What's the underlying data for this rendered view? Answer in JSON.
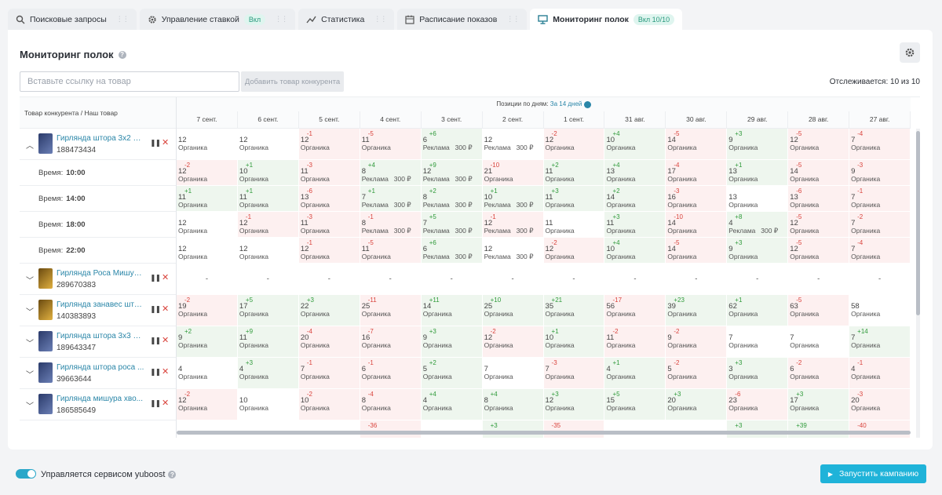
{
  "tabs": [
    {
      "label": "Поисковые запросы",
      "icon": "search-icon",
      "active": false
    },
    {
      "label": "Управление ставкой",
      "icon": "gear-icon",
      "badge": "Вкл",
      "active": false
    },
    {
      "label": "Статистика",
      "icon": "chart-line-icon",
      "active": false
    },
    {
      "label": "Расписание показов",
      "icon": "calendar-icon",
      "active": false
    },
    {
      "label": "Мониторинг полок",
      "icon": "monitor-icon",
      "badge": "Вкл 10/10",
      "active": true
    }
  ],
  "page": {
    "title": "Мониторинг полок",
    "search_placeholder": "Вставьте ссылку на товар",
    "add_button": "Добавить товар конкурента",
    "tracked": "Отслеживается: 10 из 10"
  },
  "table": {
    "left_header": "Товар конкурента / Наш товар",
    "positions_label": "Позиции по дням:",
    "positions_link": "За 14 дней",
    "dates": [
      "7 сент.",
      "6 сент.",
      "5 сент.",
      "4 сент.",
      "3 сент.",
      "2 сент.",
      "1 сент.",
      "31 авг.",
      "30 авг.",
      "29 авг.",
      "28 авг.",
      "27 авг."
    ],
    "rows": [
      {
        "type": "product",
        "name": "Гирлянда штора 3х2 U...",
        "id": "188473434",
        "thumb": "blue",
        "expanded": true,
        "cells": [
          [
            "12",
            "",
            "Органика",
            ""
          ],
          [
            "12",
            "",
            "Органика",
            ""
          ],
          [
            "12",
            "-1",
            "Органика",
            ""
          ],
          [
            "11",
            "-5",
            "Органика",
            ""
          ],
          [
            "6",
            "+6",
            "Реклама",
            "300 ₽"
          ],
          [
            "12",
            "",
            "Реклама",
            "300 ₽"
          ],
          [
            "12",
            "-2",
            "Органика",
            ""
          ],
          [
            "10",
            "+4",
            "Органика",
            ""
          ],
          [
            "14",
            "-5",
            "Органика",
            ""
          ],
          [
            "9",
            "+3",
            "Органика",
            ""
          ],
          [
            "12",
            "-5",
            "Органика",
            ""
          ],
          [
            "7",
            "-4",
            "Органика",
            ""
          ]
        ]
      },
      {
        "type": "time",
        "label": "Время:",
        "time": "10:00",
        "cells": [
          [
            "12",
            "-2",
            "Органика",
            ""
          ],
          [
            "10",
            "+1",
            "Органика",
            ""
          ],
          [
            "11",
            "-3",
            "Органика",
            ""
          ],
          [
            "8",
            "+4",
            "Реклама",
            "300 ₽"
          ],
          [
            "12",
            "+9",
            "Реклама",
            "300 ₽"
          ],
          [
            "21",
            "-10",
            "Органика",
            ""
          ],
          [
            "11",
            "+2",
            "Органика",
            ""
          ],
          [
            "13",
            "+4",
            "Органика",
            ""
          ],
          [
            "17",
            "-4",
            "Органика",
            ""
          ],
          [
            "13",
            "+1",
            "Органика",
            ""
          ],
          [
            "14",
            "-5",
            "Органика",
            ""
          ],
          [
            "9",
            "-3",
            "Органика",
            ""
          ]
        ]
      },
      {
        "type": "time",
        "label": "Время:",
        "time": "14:00",
        "cells": [
          [
            "11",
            "+1",
            "Органика",
            ""
          ],
          [
            "11",
            "+1",
            "Органика",
            ""
          ],
          [
            "13",
            "-6",
            "Органика",
            ""
          ],
          [
            "7",
            "+1",
            "Реклама",
            "300 ₽"
          ],
          [
            "8",
            "+2",
            "Реклама",
            "300 ₽"
          ],
          [
            "10",
            "+1",
            "Реклама",
            "300 ₽"
          ],
          [
            "11",
            "+3",
            "Органика",
            ""
          ],
          [
            "14",
            "+2",
            "Органика",
            ""
          ],
          [
            "16",
            "-3",
            "Органика",
            ""
          ],
          [
            "13",
            "",
            "Органика",
            ""
          ],
          [
            "13",
            "-6",
            "Органика",
            ""
          ],
          [
            "7",
            "-1",
            "Органика",
            ""
          ]
        ]
      },
      {
        "type": "time",
        "label": "Время:",
        "time": "18:00",
        "cells": [
          [
            "12",
            "",
            "Органика",
            ""
          ],
          [
            "12",
            "-1",
            "Органика",
            ""
          ],
          [
            "11",
            "-3",
            "Органика",
            ""
          ],
          [
            "8",
            "-1",
            "Реклама",
            "300 ₽"
          ],
          [
            "7",
            "+5",
            "Реклама",
            "300 ₽"
          ],
          [
            "12",
            "-1",
            "Реклама",
            "300 ₽"
          ],
          [
            "11",
            "",
            "Органика",
            ""
          ],
          [
            "11",
            "+3",
            "Органика",
            ""
          ],
          [
            "14",
            "-10",
            "Органика",
            ""
          ],
          [
            "4",
            "+8",
            "Реклама",
            "300 ₽"
          ],
          [
            "12",
            "-5",
            "Органика",
            ""
          ],
          [
            "7",
            "-2",
            "Органика",
            ""
          ]
        ]
      },
      {
        "type": "time",
        "label": "Время:",
        "time": "22:00",
        "cells": [
          [
            "12",
            "",
            "Органика",
            ""
          ],
          [
            "12",
            "",
            "Органика",
            ""
          ],
          [
            "12",
            "-1",
            "Органика",
            ""
          ],
          [
            "11",
            "-5",
            "Органика",
            ""
          ],
          [
            "6",
            "+6",
            "Реклама",
            "300 ₽"
          ],
          [
            "12",
            "",
            "Реклама",
            "300 ₽"
          ],
          [
            "12",
            "-2",
            "Органика",
            ""
          ],
          [
            "10",
            "+4",
            "Органика",
            ""
          ],
          [
            "14",
            "-5",
            "Органика",
            ""
          ],
          [
            "9",
            "+3",
            "Органика",
            ""
          ],
          [
            "12",
            "-5",
            "Органика",
            ""
          ],
          [
            "7",
            "-4",
            "Органика",
            ""
          ]
        ]
      },
      {
        "type": "product",
        "name": "Гирлянда Роса Мишур...",
        "id": "289670383",
        "thumb": "gold",
        "expanded": false,
        "empty": "-"
      },
      {
        "type": "product",
        "name": "Гирлянда занавес што...",
        "id": "140383893",
        "thumb": "gold",
        "expanded": false,
        "cells": [
          [
            "19",
            "-2",
            "Органика",
            ""
          ],
          [
            "17",
            "+5",
            "Органика",
            ""
          ],
          [
            "22",
            "+3",
            "Органика",
            ""
          ],
          [
            "25",
            "-11",
            "Органика",
            ""
          ],
          [
            "14",
            "+11",
            "Органика",
            ""
          ],
          [
            "25",
            "+10",
            "Органика",
            ""
          ],
          [
            "35",
            "+21",
            "Органика",
            ""
          ],
          [
            "56",
            "-17",
            "Органика",
            ""
          ],
          [
            "39",
            "+23",
            "Органика",
            ""
          ],
          [
            "62",
            "+1",
            "Органика",
            ""
          ],
          [
            "63",
            "-5",
            "Органика",
            ""
          ],
          [
            "58",
            "",
            "Органика",
            ""
          ]
        ]
      },
      {
        "type": "product",
        "name": "Гирлянда штора 3х3 U...",
        "id": "189643347",
        "thumb": "blue",
        "expanded": false,
        "cells": [
          [
            "9",
            "+2",
            "Органика",
            ""
          ],
          [
            "11",
            "+9",
            "Органика",
            ""
          ],
          [
            "20",
            "-4",
            "Органика",
            ""
          ],
          [
            "16",
            "-7",
            "Органика",
            ""
          ],
          [
            "9",
            "+3",
            "Органика",
            ""
          ],
          [
            "12",
            "-2",
            "Органика",
            ""
          ],
          [
            "10",
            "+1",
            "Органика",
            ""
          ],
          [
            "11",
            "-2",
            "Органика",
            ""
          ],
          [
            "9",
            "-2",
            "Органика",
            ""
          ],
          [
            "7",
            "",
            "Органика",
            ""
          ],
          [
            "7",
            "",
            "Органика",
            ""
          ],
          [
            "7",
            "+14",
            "Органика",
            ""
          ]
        ]
      },
      {
        "type": "product",
        "name": "Гирлянда штора роса ...",
        "id": "39663644",
        "thumb": "blue",
        "expanded": false,
        "cells": [
          [
            "4",
            "",
            "Органика",
            ""
          ],
          [
            "4",
            "+3",
            "Органика",
            ""
          ],
          [
            "7",
            "-1",
            "Органика",
            ""
          ],
          [
            "6",
            "-1",
            "Органика",
            ""
          ],
          [
            "5",
            "+2",
            "Органика",
            ""
          ],
          [
            "7",
            "",
            "Органика",
            ""
          ],
          [
            "7",
            "-3",
            "Органика",
            ""
          ],
          [
            "4",
            "+1",
            "Органика",
            ""
          ],
          [
            "5",
            "-2",
            "Органика",
            ""
          ],
          [
            "3",
            "+3",
            "Органика",
            ""
          ],
          [
            "6",
            "-2",
            "Органика",
            ""
          ],
          [
            "4",
            "-1",
            "Органика",
            ""
          ]
        ]
      },
      {
        "type": "product",
        "name": "Гирлянда мишура хво...",
        "id": "186585649",
        "thumb": "blue",
        "expanded": false,
        "cells": [
          [
            "12",
            "-2",
            "Органика",
            ""
          ],
          [
            "10",
            "",
            "Органика",
            ""
          ],
          [
            "10",
            "-2",
            "Органика",
            ""
          ],
          [
            "8",
            "-4",
            "Органика",
            ""
          ],
          [
            "4",
            "+4",
            "Органика",
            ""
          ],
          [
            "8",
            "+4",
            "Органика",
            ""
          ],
          [
            "12",
            "+3",
            "Органика",
            ""
          ],
          [
            "15",
            "+5",
            "Органика",
            ""
          ],
          [
            "20",
            "+3",
            "Органика",
            ""
          ],
          [
            "23",
            "-6",
            "Органика",
            ""
          ],
          [
            "17",
            "+3",
            "Органика",
            ""
          ],
          [
            "20",
            "-3",
            "Органика",
            ""
          ]
        ]
      },
      {
        "type": "partial",
        "cells": [
          [
            "",
            "",
            "",
            ""
          ],
          [
            "",
            "",
            "",
            ""
          ],
          [
            "",
            "",
            "",
            ""
          ],
          [
            "",
            "-36",
            "",
            ""
          ],
          [
            "",
            "",
            "",
            ""
          ],
          [
            "",
            "+3",
            "",
            ""
          ],
          [
            "",
            "-35",
            "",
            ""
          ],
          [
            "",
            "",
            "",
            ""
          ],
          [
            "",
            "",
            "",
            ""
          ],
          [
            "",
            "+3",
            "",
            ""
          ],
          [
            "",
            "+39",
            "",
            ""
          ],
          [
            "",
            "-40",
            "",
            ""
          ]
        ]
      }
    ]
  },
  "footer": {
    "managed": "Управляется сервисом yuboost",
    "launch": "Запустить кампанию"
  }
}
